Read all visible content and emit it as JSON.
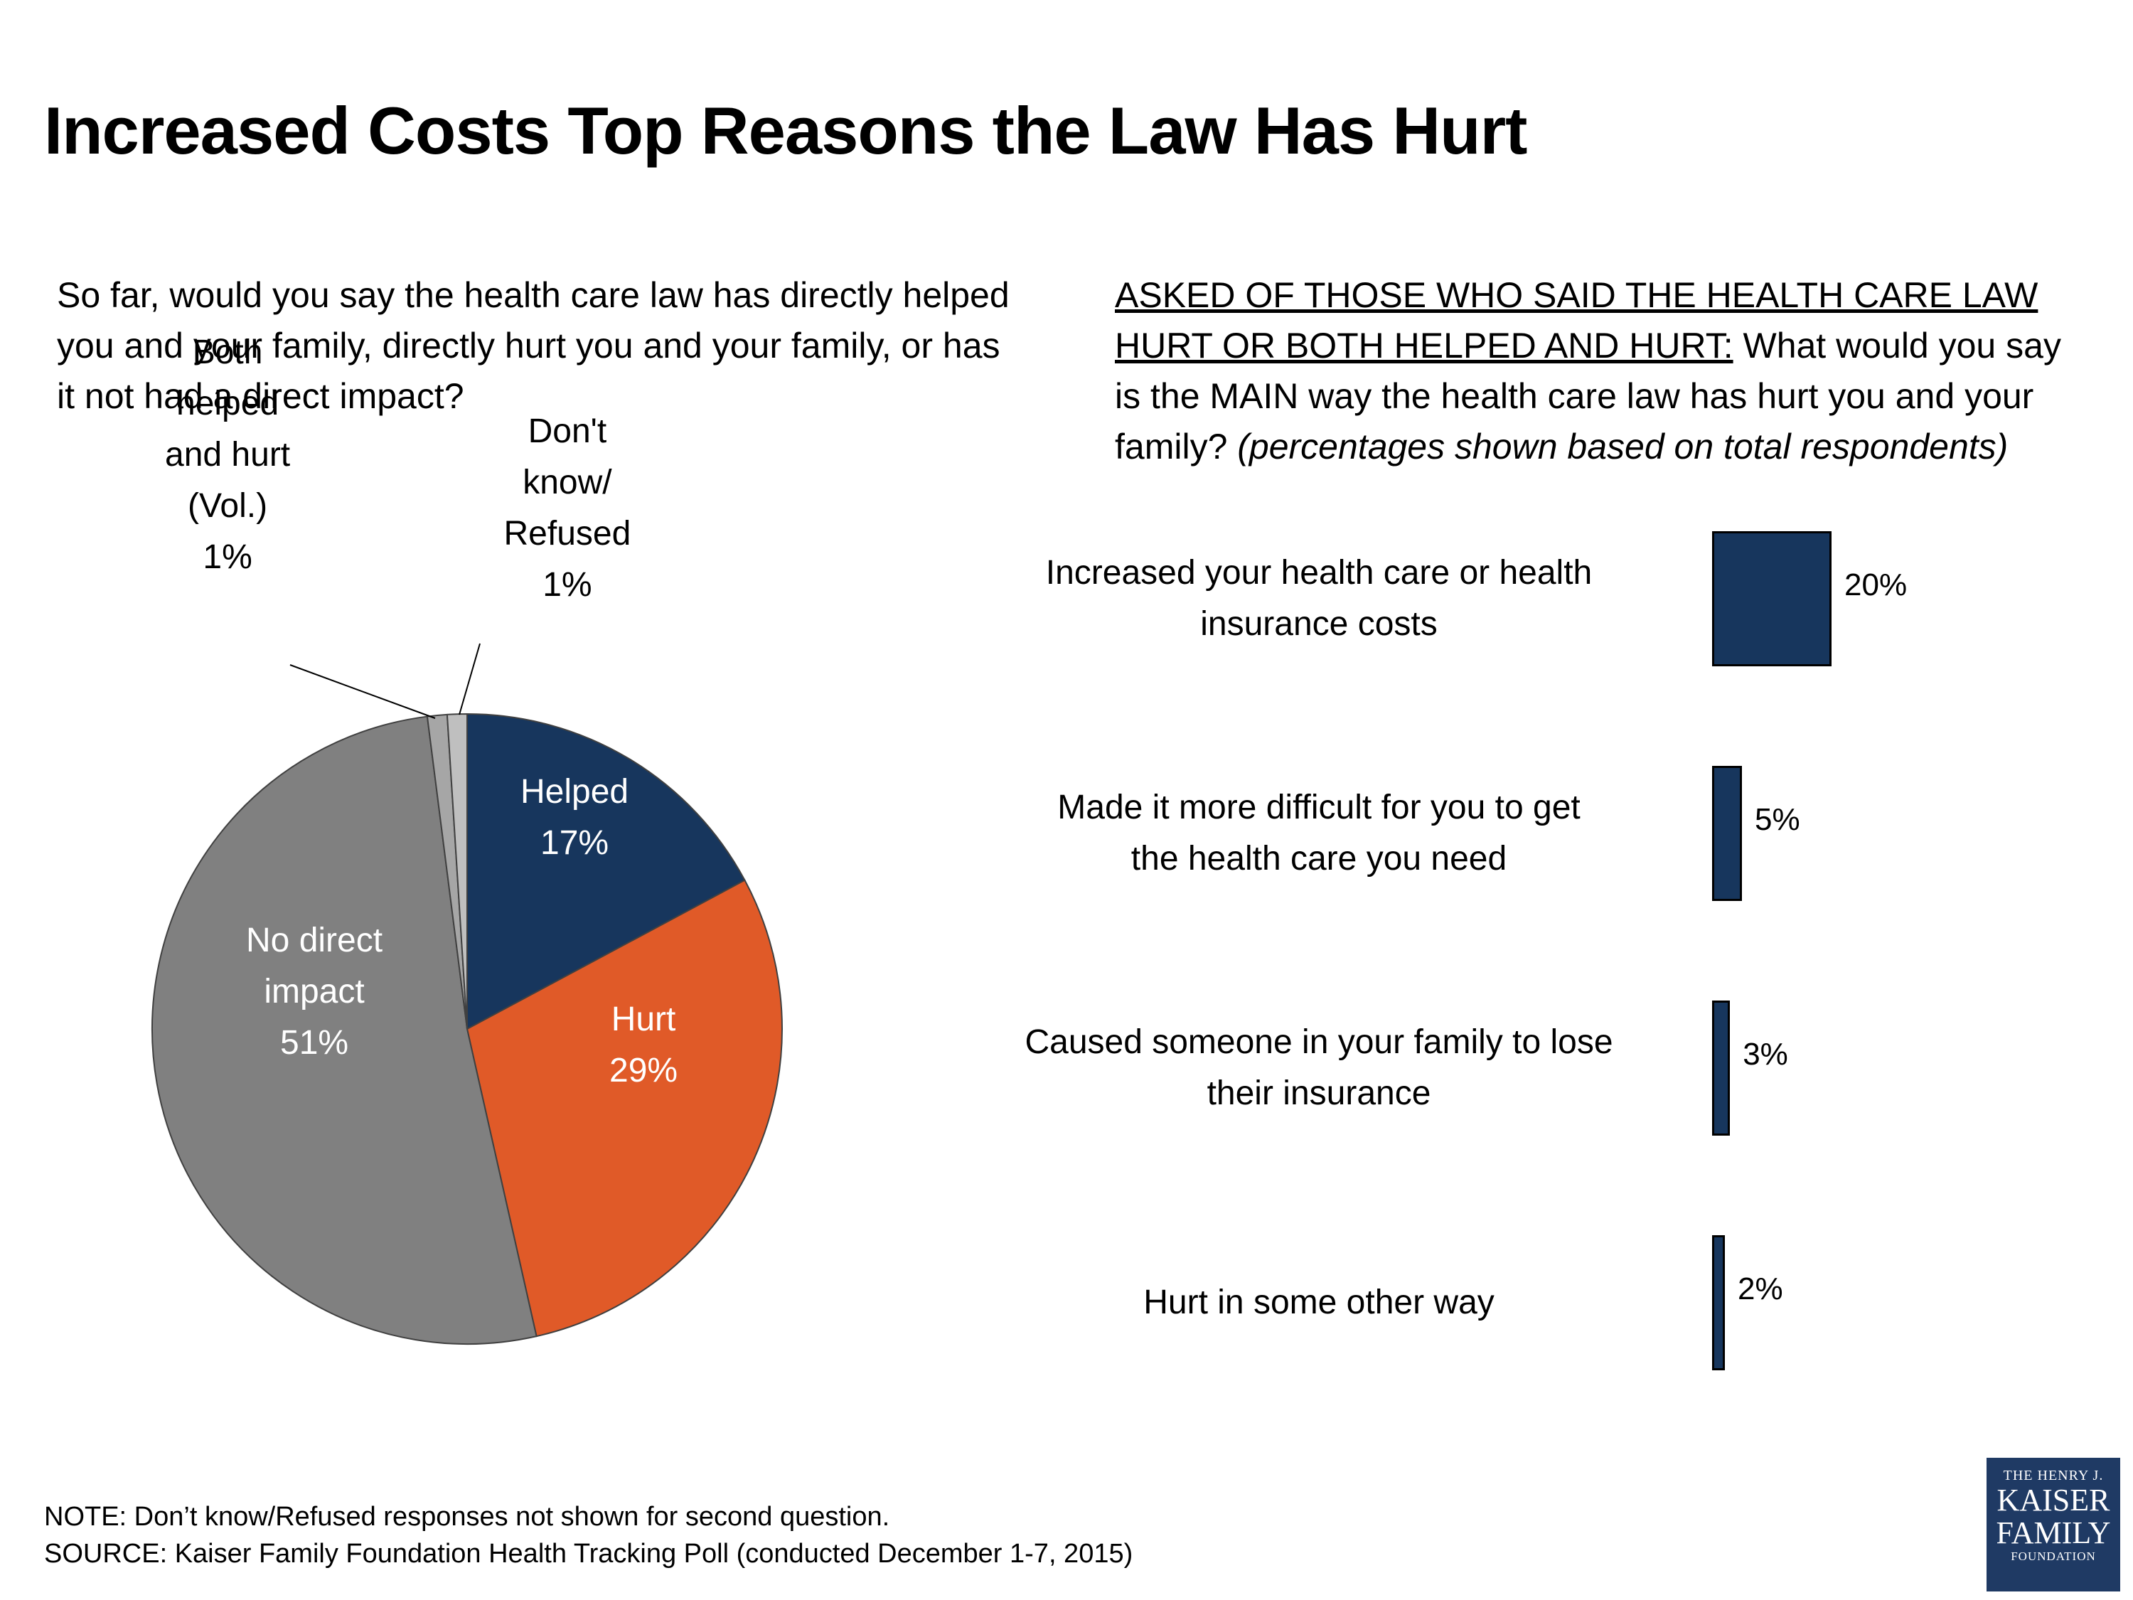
{
  "title": "Increased Costs Top Reasons the Law Has Hurt",
  "left_question": "So far, would you say the health care law has directly helped you and your family, directly hurt you and your family, or has it not had a direct impact?",
  "right_question": {
    "underlined": "ASKED OF THOSE WHO SAID THE HEALTH CARE LAW HURT OR BOTH HELPED AND HURT:",
    "main": " What would you say is the MAIN way the health care law has hurt you and your family? ",
    "italic": "(percentages shown based on total respondents)"
  },
  "chart_data": [
    {
      "type": "pie",
      "title": "So far, would you say the health care law has directly helped you and your family, directly hurt you and your family, or has it not had a direct impact?",
      "slices": [
        {
          "label_lines": [
            "Helped",
            "17%"
          ],
          "value": 17,
          "color": "#17365d"
        },
        {
          "label_lines": [
            "Hurt",
            "29%"
          ],
          "value": 29,
          "color": "#e05a28"
        },
        {
          "label_lines": [
            "No direct",
            "impact",
            "51%"
          ],
          "value": 51,
          "color": "#808080"
        },
        {
          "label_lines": [
            "Both",
            "helped",
            "and hurt",
            "(Vol.)",
            "1%"
          ],
          "value": 1,
          "color": "#a6a6a6"
        },
        {
          "label_lines": [
            "Don't",
            "know/",
            "Refused",
            "1%"
          ],
          "value": 1,
          "color": "#bfbfbf"
        }
      ]
    },
    {
      "type": "bar",
      "orientation": "horizontal",
      "title": "What would you say is the MAIN way the health care law has hurt you and your family?",
      "categories": [
        [
          "Increased your health care or health",
          "insurance costs"
        ],
        [
          "Made it more difficult for you to get",
          "the health care you need"
        ],
        [
          "Caused someone in your family to lose",
          "their insurance"
        ],
        [
          "Hurt in some other way"
        ]
      ],
      "values": [
        20,
        5,
        3,
        2
      ],
      "value_labels": [
        "20%",
        "5%",
        "3%",
        "2%"
      ],
      "color": "#17365d",
      "xlim": [
        0,
        100
      ]
    }
  ],
  "footnotes": {
    "note": "NOTE: Don’t know/Refused responses not shown for second question.",
    "source": "SOURCE: Kaiser Family Foundation Health Tracking Poll (conducted December 1-7, 2015)"
  },
  "logo": {
    "line1": "THE HENRY J.",
    "line2": "KAISER",
    "line3": "FAMILY",
    "line4": "FOUNDATION"
  }
}
